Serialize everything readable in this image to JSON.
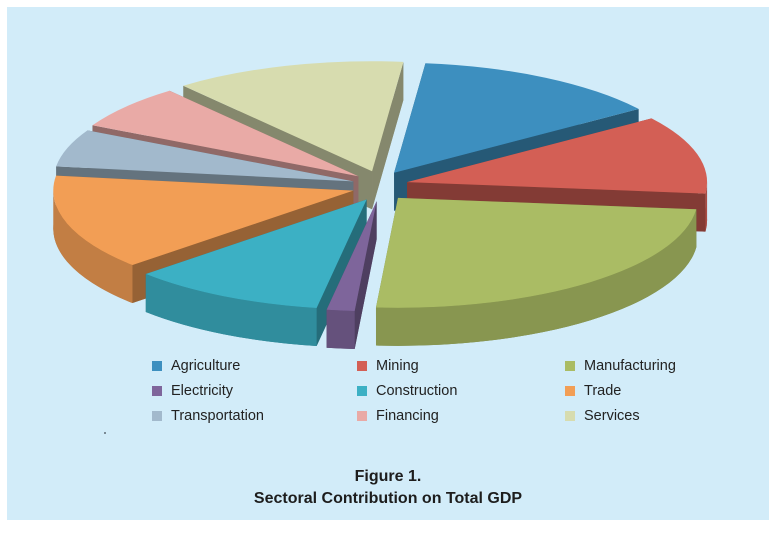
{
  "chart_data": {
    "type": "pie",
    "style": "3d-exploded",
    "title": "Figure 1.",
    "subtitle": "Sectoral Contribution on Total GDP",
    "legend_position": "bottom",
    "categories": [
      "Agriculture",
      "Mining",
      "Manufacturing",
      "Electricity",
      "Construction",
      "Trade",
      "Transportation",
      "Financing",
      "Services"
    ],
    "values": [
      13.5,
      11.5,
      24.5,
      1.5,
      10.5,
      14.0,
      5.5,
      6.5,
      12.5
    ],
    "colors": [
      "#3d8fbf",
      "#d35f55",
      "#aabc64",
      "#7e659b",
      "#3cb0c4",
      "#f29e55",
      "#a2b9cc",
      "#e9aaa6",
      "#d7dcaf"
    ]
  }
}
